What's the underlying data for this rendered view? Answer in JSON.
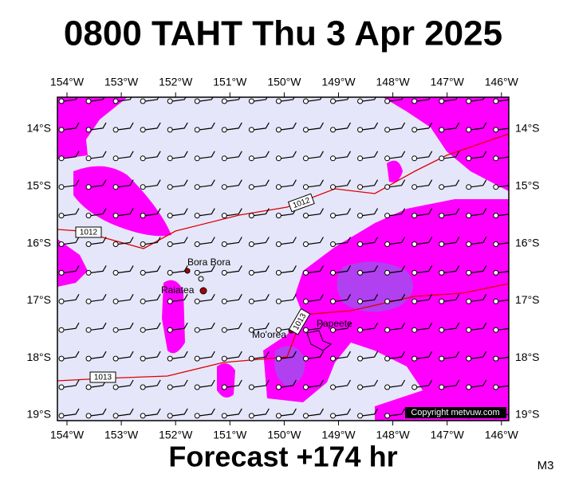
{
  "header": {
    "title": "0800 TAHT Thu 3 Apr 2025"
  },
  "map": {
    "lon_labels": [
      "154°W",
      "153°W",
      "152°W",
      "151°W",
      "150°W",
      "149°W",
      "148°W",
      "147°W",
      "146°W"
    ],
    "lat_labels": [
      "14°S",
      "15°S",
      "16°S",
      "17°S",
      "18°S",
      "19°S"
    ],
    "places": [
      {
        "label": "Bora Bora"
      },
      {
        "label": "Raiatea"
      },
      {
        "label": "Mo'orea"
      },
      {
        "label": "Papeete"
      }
    ],
    "isobar_labels": [
      "1012",
      "1012",
      "1013",
      "1013"
    ],
    "copyright": "Copyright metvuw.com"
  },
  "footer": {
    "forecast": "Forecast +174 hr",
    "code": "M3"
  }
}
